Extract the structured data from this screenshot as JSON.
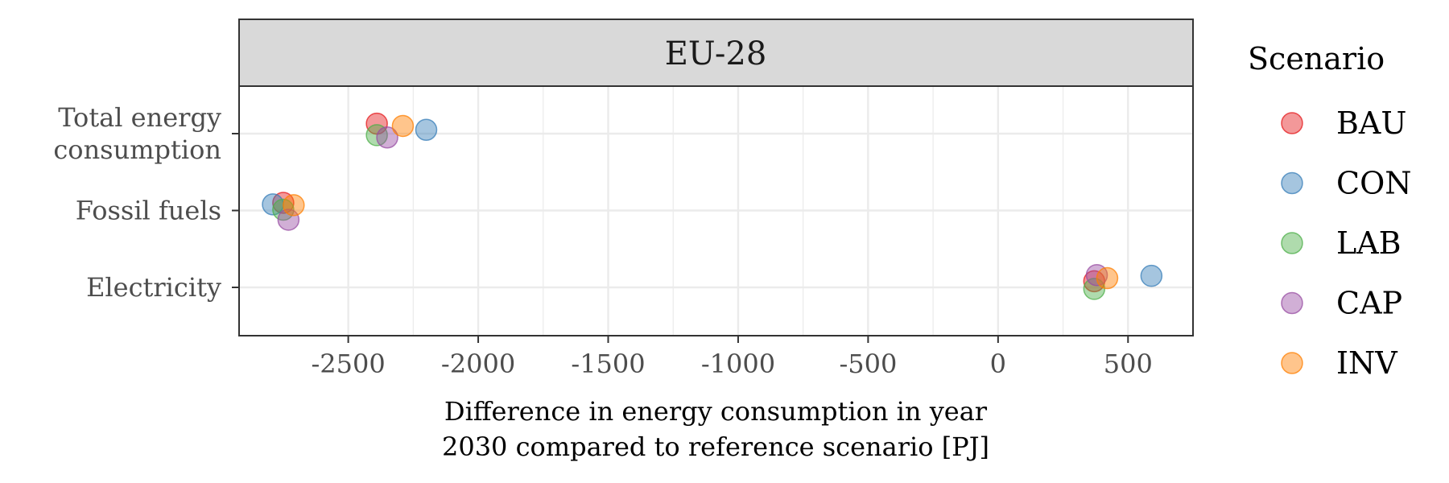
{
  "chart_data": {
    "type": "scatter",
    "panel_title": "EU-28",
    "xlabel_lines": [
      "Difference in energy consumption in year",
      "2030 compared to reference scenario [PJ]"
    ],
    "ylabel": "",
    "xlim": [
      -2920,
      750
    ],
    "x_ticks": [
      -2500,
      -2000,
      -1500,
      -1000,
      -500,
      0,
      500
    ],
    "x_tick_labels": [
      "-2500",
      "-2000",
      "-1500",
      "-1000",
      "-500",
      "0",
      "500"
    ],
    "categories": [
      "Total energy consumption",
      "Fossil fuels",
      "Electricity"
    ],
    "category_label_lines": [
      [
        "Total energy",
        "consumption"
      ],
      [
        "Fossil fuels"
      ],
      [
        "Electricity"
      ]
    ],
    "grid": true,
    "legend": {
      "title": "Scenario",
      "placement": "right"
    },
    "series": [
      {
        "name": "BAU",
        "color": "#E41A1C",
        "values": [
          -2390,
          -2750,
          370
        ],
        "jitter": [
          -0.13,
          -0.1,
          -0.08
        ]
      },
      {
        "name": "CON",
        "color": "#377EB8",
        "values": [
          -2200,
          -2790,
          590
        ],
        "jitter": [
          -0.05,
          -0.08,
          -0.15
        ]
      },
      {
        "name": "LAB",
        "color": "#4DAF4A",
        "values": [
          -2390,
          -2750,
          370
        ],
        "jitter": [
          0.02,
          -0.01,
          0.02
        ]
      },
      {
        "name": "CAP",
        "color": "#984EA3",
        "values": [
          -2350,
          -2730,
          380
        ],
        "jitter": [
          0.05,
          0.12,
          -0.16
        ]
      },
      {
        "name": "INV",
        "color": "#FF7F00",
        "values": [
          -2290,
          -2710,
          420
        ],
        "jitter": [
          -0.1,
          -0.07,
          -0.12
        ]
      }
    ]
  }
}
